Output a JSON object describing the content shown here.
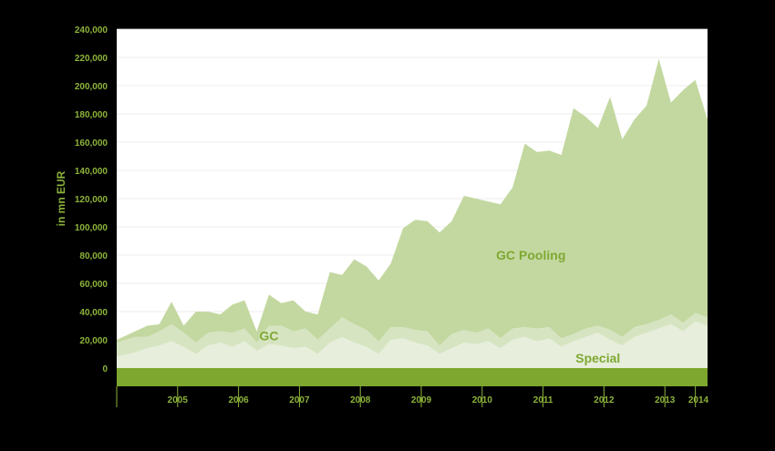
{
  "chart_data": {
    "type": "area",
    "stacked": true,
    "ylabel": "in mn EUR",
    "ylim": [
      0,
      240000
    ],
    "y_ticks": [
      "240,000",
      "220,000",
      "200,000",
      "180,000",
      "160,000",
      "140,000",
      "120,000",
      "100,000",
      "80,000",
      "60,000",
      "40,000",
      "20,000",
      "0"
    ],
    "x_ticks": [
      "2005",
      "2006",
      "2007",
      "2008",
      "2009",
      "2010",
      "2011",
      "2012",
      "2013",
      "2014"
    ],
    "xlim": [
      2004.5,
      2014.2
    ],
    "grid": true,
    "colors": {
      "Special": "#e7eedb",
      "GC": "#d6e4c2",
      "GC Pooling": "#c3d8a0",
      "baseline_band": "#7ea730",
      "plot_background": "#ffffff",
      "text": "#8db33a"
    },
    "series": [
      {
        "name": "Special",
        "x": [
          2004.5,
          2004.8,
          2005.0,
          2005.2,
          2005.4,
          2005.6,
          2005.8,
          2006.0,
          2006.2,
          2006.4,
          2006.6,
          2006.8,
          2007.0,
          2007.2,
          2007.4,
          2007.6,
          2007.8,
          2008.0,
          2008.2,
          2008.4,
          2008.6,
          2008.8,
          2009.0,
          2009.2,
          2009.4,
          2009.6,
          2009.8,
          2010.0,
          2010.2,
          2010.4,
          2010.6,
          2010.8,
          2011.0,
          2011.2,
          2011.4,
          2011.6,
          2011.8,
          2012.0,
          2012.2,
          2012.4,
          2012.6,
          2012.8,
          2013.0,
          2013.2,
          2013.4,
          2013.6,
          2013.8,
          2014.0,
          2014.2
        ],
        "values": [
          8000,
          11000,
          14000,
          16000,
          19000,
          15000,
          10000,
          16000,
          18000,
          15000,
          19000,
          12000,
          17000,
          16000,
          14000,
          15000,
          10000,
          18000,
          22000,
          18000,
          15000,
          10000,
          20000,
          21000,
          18000,
          16000,
          10000,
          14000,
          18000,
          17000,
          19000,
          14000,
          20000,
          22000,
          19000,
          21000,
          15000,
          19000,
          22000,
          25000,
          20000,
          16000,
          22000,
          25000,
          28000,
          31000,
          26000,
          33000,
          30000
        ]
      },
      {
        "name": "GC",
        "x": [
          2004.5,
          2004.8,
          2005.0,
          2005.2,
          2005.4,
          2005.6,
          2005.8,
          2006.0,
          2006.2,
          2006.4,
          2006.6,
          2006.8,
          2007.0,
          2007.2,
          2007.4,
          2007.6,
          2007.8,
          2008.0,
          2008.2,
          2008.4,
          2008.6,
          2008.8,
          2009.0,
          2009.2,
          2009.4,
          2009.6,
          2009.8,
          2010.0,
          2010.2,
          2010.4,
          2010.6,
          2010.8,
          2011.0,
          2011.2,
          2011.4,
          2011.6,
          2011.8,
          2012.0,
          2012.2,
          2012.4,
          2012.6,
          2012.8,
          2013.0,
          2013.2,
          2013.4,
          2013.6,
          2013.8,
          2014.0,
          2014.2
        ],
        "values": [
          10000,
          11000,
          8000,
          10000,
          12000,
          10000,
          8000,
          9000,
          8000,
          10000,
          9000,
          6000,
          13000,
          14000,
          12000,
          13000,
          10000,
          10000,
          14000,
          13000,
          12000,
          9000,
          9000,
          8000,
          9000,
          10000,
          6000,
          10000,
          9000,
          8000,
          9000,
          7000,
          8000,
          7000,
          9000,
          8000,
          6000,
          5000,
          6000,
          5000,
          7000,
          6000,
          7000,
          6000,
          6000,
          7000,
          6000,
          6000,
          6000
        ]
      },
      {
        "name": "GC Pooling",
        "x": [
          2004.5,
          2004.8,
          2005.0,
          2005.2,
          2005.4,
          2005.6,
          2005.8,
          2006.0,
          2006.2,
          2006.4,
          2006.6,
          2006.8,
          2007.0,
          2007.2,
          2007.4,
          2007.6,
          2007.8,
          2008.0,
          2008.2,
          2008.4,
          2008.6,
          2008.8,
          2009.0,
          2009.2,
          2009.4,
          2009.6,
          2009.8,
          2010.0,
          2010.2,
          2010.4,
          2010.6,
          2010.8,
          2011.0,
          2011.2,
          2011.4,
          2011.6,
          2011.8,
          2012.0,
          2012.2,
          2012.4,
          2012.6,
          2012.8,
          2013.0,
          2013.2,
          2013.4,
          2013.6,
          2013.8,
          2014.0,
          2014.2
        ],
        "values": [
          2000,
          4000,
          8000,
          5000,
          16000,
          5000,
          22000,
          15000,
          12000,
          20000,
          20000,
          8000,
          22000,
          16000,
          22000,
          12000,
          18000,
          40000,
          30000,
          46000,
          45000,
          43000,
          45000,
          70000,
          78000,
          78000,
          80000,
          80000,
          95000,
          95000,
          90000,
          95000,
          100000,
          130000,
          125000,
          125000,
          130000,
          160000,
          150000,
          140000,
          165000,
          140000,
          147000,
          155000,
          185000,
          150000,
          165000,
          165000,
          140000
        ]
      }
    ],
    "annotations": [
      {
        "text": "GC Pooling",
        "x": 2011.3,
        "y": 80000
      },
      {
        "text": "GC",
        "x": 2007.0,
        "y": 23000
      },
      {
        "text": "Special",
        "x": 2012.4,
        "y": 7000
      }
    ]
  }
}
